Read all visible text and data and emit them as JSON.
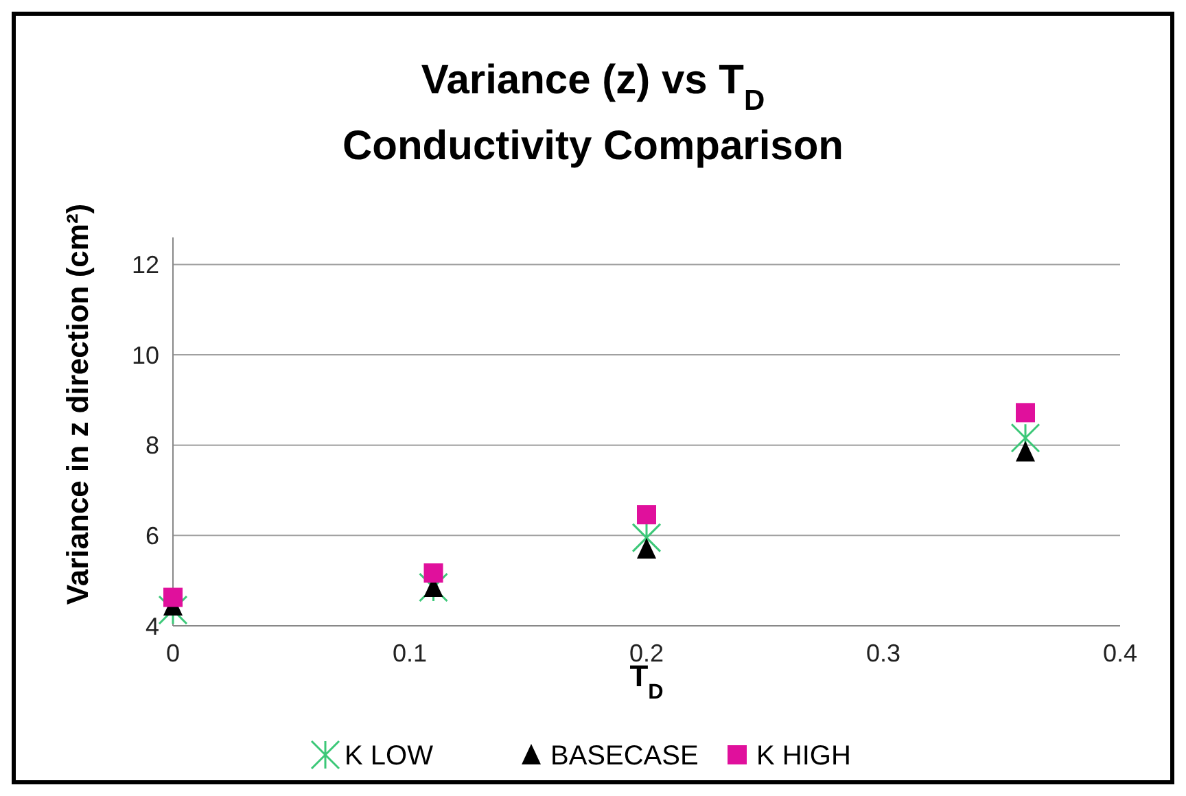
{
  "chart_data": {
    "type": "scatter",
    "title": "Variance (z) vs T$_{D}$",
    "subtitle": "Conductivity Comparison",
    "xlabel": "T$_{D}$",
    "ylabel": "Variance in z direction (cm²)",
    "x": [
      0,
      0.11,
      0.2,
      0.36
    ],
    "series": [
      {
        "name": "K LOW",
        "color": "#3cc878",
        "marker": "cross",
        "values": [
          4.35,
          4.85,
          5.95,
          8.16
        ]
      },
      {
        "name": "BASECASE",
        "color": "#000000",
        "marker": "triangle",
        "values": [
          4.44,
          4.85,
          5.7,
          7.85
        ]
      },
      {
        "name": "K HIGH",
        "color": "#e0109c",
        "marker": "square",
        "values": [
          4.63,
          5.17,
          6.46,
          8.72
        ]
      }
    ],
    "xlim": [
      0,
      0.4
    ],
    "xticks": [
      0,
      0.1,
      0.2,
      0.3,
      0.4
    ],
    "ylim": [
      4,
      12.6
    ],
    "yticks": [
      4,
      6,
      8,
      10,
      12
    ],
    "grid": "y",
    "legend": "bottom"
  }
}
